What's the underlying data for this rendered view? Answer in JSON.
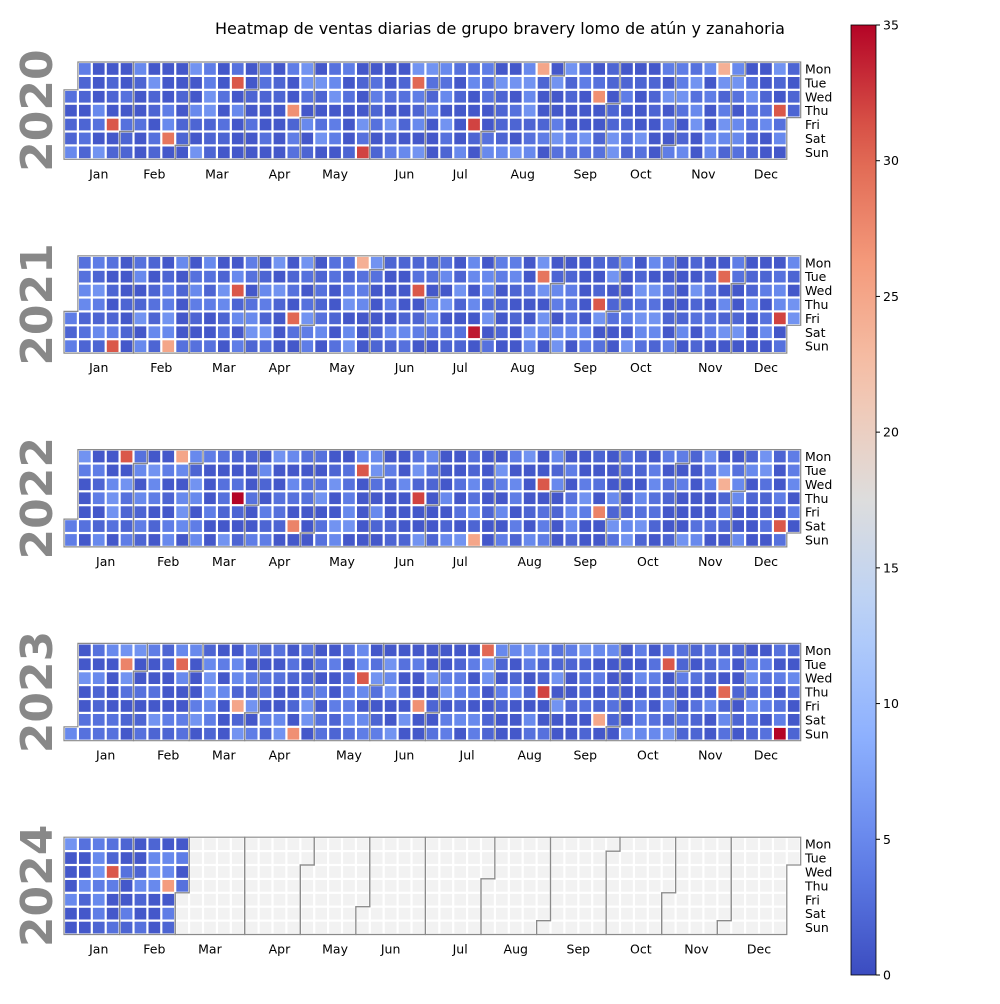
{
  "chart_data": {
    "type": "heatmap",
    "title": "Heatmap de ventas diarias de grupo bravery lomo de atún y zanahoria",
    "years": [
      2020,
      2021,
      2022,
      2023,
      2024
    ],
    "weekday_labels": [
      "Mon",
      "Tue",
      "Wed",
      "Thu",
      "Fri",
      "Sat",
      "Sun"
    ],
    "month_labels": [
      "Jan",
      "Feb",
      "Mar",
      "Apr",
      "May",
      "Jun",
      "Jul",
      "Aug",
      "Sep",
      "Oct",
      "Nov",
      "Dec"
    ],
    "colorbar": {
      "colormap": "coolwarm",
      "min": 0,
      "max": 35,
      "ticks": [
        0,
        5,
        10,
        15,
        20,
        25,
        30,
        35
      ]
    },
    "colors": {
      "low": "#3b4cc0",
      "high": "#b40426",
      "empty": "#f2f2f2",
      "year_label": "#888888",
      "month_outline": "#8a8a8a"
    },
    "data_through": "2024-02-29",
    "typical_daily_value_range": [
      1,
      6
    ],
    "peaks": {
      "2020": [
        [
          "2020-01-24",
          31
        ],
        [
          "2020-02-22",
          29
        ],
        [
          "2020-03-24",
          31
        ],
        [
          "2020-04-23",
          27
        ],
        [
          "2020-05-31",
          32
        ],
        [
          "2020-06-23",
          30
        ],
        [
          "2020-07-24",
          32
        ],
        [
          "2020-08-24",
          25
        ],
        [
          "2020-09-23",
          27
        ],
        [
          "2020-11-23",
          24
        ],
        [
          "2020-12-24",
          31
        ]
      ],
      "2021": [
        [
          "2021-01-24",
          31
        ],
        [
          "2021-02-21",
          25
        ],
        [
          "2021-03-24",
          31
        ],
        [
          "2021-04-23",
          30
        ],
        [
          "2021-05-24",
          24
        ],
        [
          "2021-06-23",
          31
        ],
        [
          "2021-07-24",
          34
        ],
        [
          "2021-08-24",
          29
        ],
        [
          "2021-09-23",
          31
        ],
        [
          "2021-11-23",
          30
        ],
        [
          "2021-12-24",
          32
        ]
      ],
      "2022": [
        [
          "2022-01-24",
          31
        ],
        [
          "2022-02-21",
          25
        ],
        [
          "2022-03-24",
          35
        ],
        [
          "2022-04-23",
          28
        ],
        [
          "2022-05-24",
          31
        ],
        [
          "2022-06-23",
          32
        ],
        [
          "2022-07-24",
          25
        ],
        [
          "2022-08-24",
          31
        ],
        [
          "2022-09-23",
          28
        ],
        [
          "2022-11-23",
          24
        ],
        [
          "2022-12-24",
          31
        ]
      ],
      "2023": [
        [
          "2023-01-24",
          28
        ],
        [
          "2023-02-21",
          30
        ],
        [
          "2023-03-24",
          25
        ],
        [
          "2023-04-23",
          27
        ],
        [
          "2023-05-24",
          31
        ],
        [
          "2023-06-23",
          27
        ],
        [
          "2023-07-24",
          30
        ],
        [
          "2023-08-24",
          32
        ],
        [
          "2023-09-23",
          25
        ],
        [
          "2023-10-24",
          31
        ],
        [
          "2023-11-23",
          30
        ],
        [
          "2023-12-24",
          35
        ]
      ],
      "2024": [
        [
          "2024-01-24",
          31
        ],
        [
          "2024-02-22",
          26
        ]
      ]
    }
  }
}
